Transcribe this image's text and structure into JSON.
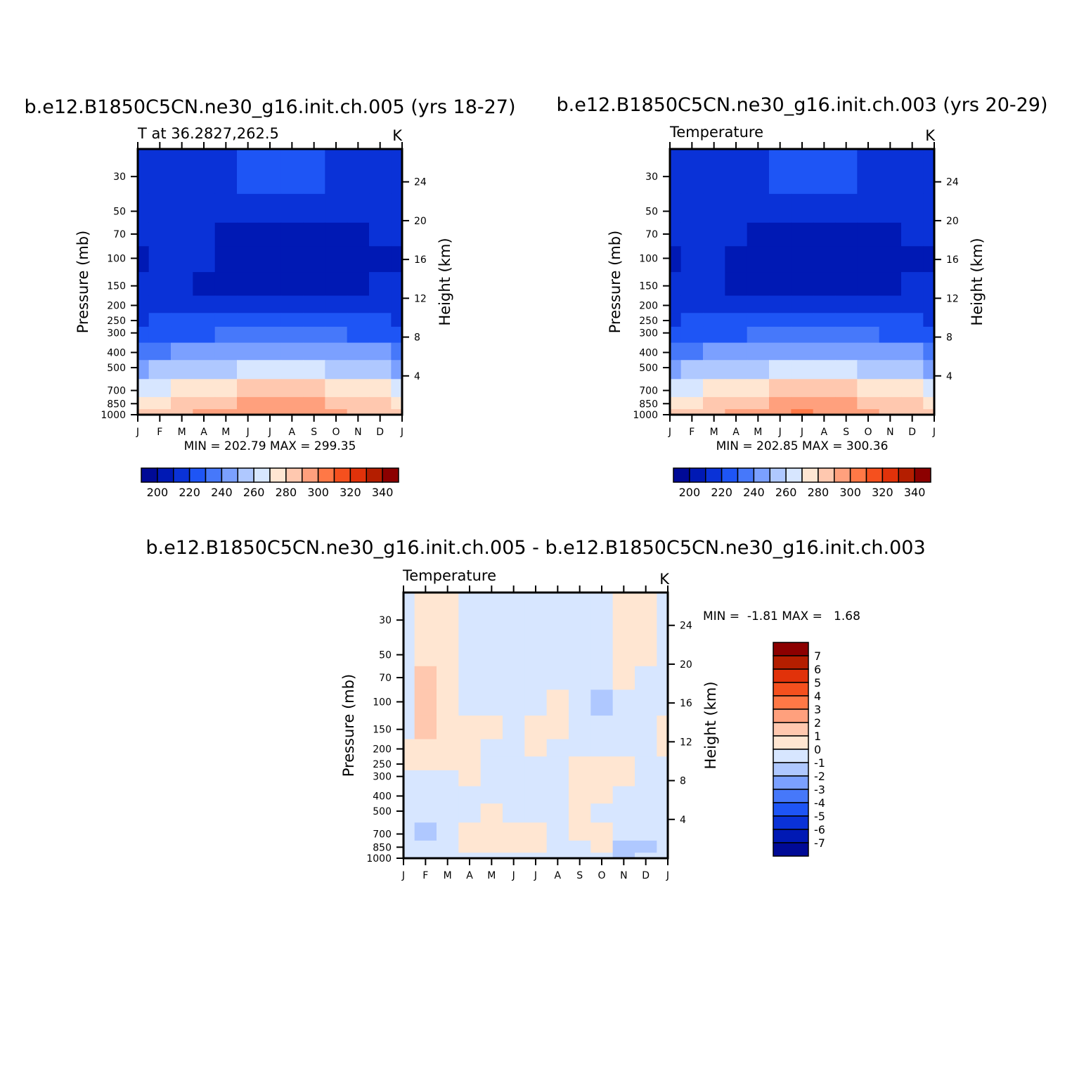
{
  "panels": [
    {
      "id": "p1",
      "title": "b.e12.B1850C5CN.ne30_g16.init.ch.005 (yrs 18-27)",
      "subtitle_left": "T at 36.2827,262.5",
      "subtitle_right": "K",
      "left_axis_label": "Pressure (mb)",
      "right_axis_label": "Height (km)",
      "pressure_ticks": [
        "30",
        "50",
        "70",
        "100",
        "150",
        "200",
        "250",
        "300",
        "400",
        "500",
        "700",
        "850",
        "1000"
      ],
      "height_ticks": [
        "24",
        "20",
        "16",
        "12",
        "8",
        "4"
      ],
      "month_ticks": [
        "J",
        "F",
        "M",
        "A",
        "M",
        "J",
        "J",
        "A",
        "S",
        "O",
        "N",
        "D",
        "J"
      ],
      "stats": "MIN = 202.79 MAX = 299.35",
      "min": 202.79,
      "max": 299.35,
      "colorbar_labels": [
        "200",
        "220",
        "240",
        "260",
        "280",
        "300",
        "320",
        "340"
      ]
    },
    {
      "id": "p2",
      "title": "b.e12.B1850C5CN.ne30_g16.init.ch.003 (yrs 20-29)",
      "subtitle_left": "Temperature",
      "subtitle_right": "K",
      "left_axis_label": "Pressure (mb)",
      "right_axis_label": "Height (km)",
      "pressure_ticks": [
        "30",
        "50",
        "70",
        "100",
        "150",
        "200",
        "250",
        "300",
        "400",
        "500",
        "700",
        "850",
        "1000"
      ],
      "height_ticks": [
        "24",
        "20",
        "16",
        "12",
        "8",
        "4"
      ],
      "month_ticks": [
        "J",
        "F",
        "M",
        "A",
        "M",
        "J",
        "J",
        "A",
        "S",
        "O",
        "N",
        "D",
        "J"
      ],
      "stats": "MIN = 202.85 MAX = 300.36",
      "min": 202.85,
      "max": 300.36,
      "colorbar_labels": [
        "200",
        "220",
        "240",
        "260",
        "280",
        "300",
        "320",
        "340"
      ]
    },
    {
      "id": "p3",
      "title": "b.e12.B1850C5CN.ne30_g16.init.ch.005 - b.e12.B1850C5CN.ne30_g16.init.ch.003",
      "subtitle_left": "Temperature",
      "subtitle_right": "K",
      "left_axis_label": "Pressure (mb)",
      "right_axis_label": "Height (km)",
      "pressure_ticks": [
        "30",
        "50",
        "70",
        "100",
        "150",
        "200",
        "250",
        "300",
        "400",
        "500",
        "700",
        "850",
        "1000"
      ],
      "height_ticks": [
        "24",
        "20",
        "16",
        "12",
        "8",
        "4"
      ],
      "month_ticks": [
        "J",
        "F",
        "M",
        "A",
        "M",
        "J",
        "J",
        "A",
        "S",
        "O",
        "N",
        "D",
        "J"
      ],
      "stats": "MIN =  -1.81 MAX =   1.68",
      "min": -1.81,
      "max": 1.68,
      "colorbar_labels": [
        "7",
        "6",
        "5",
        "4",
        "3",
        "2",
        "1",
        "0",
        "-1",
        "-2",
        "-3",
        "-4",
        "-5",
        "-6",
        "-7"
      ]
    }
  ],
  "chart_data": [
    {
      "type": "heatmap",
      "title": "b.e12.B1850C5CN.ne30_g16.init.ch.005 (yrs 18-27)",
      "subtitle": "T at 36.2827,262.5",
      "units": "K",
      "xlabel": "",
      "ylabel": "Pressure (mb)",
      "y2label": "Height (km)",
      "x": [
        "J",
        "F",
        "M",
        "A",
        "M",
        "J",
        "J",
        "A",
        "S",
        "O",
        "N",
        "D",
        "J"
      ],
      "y_pressure": [
        30,
        50,
        70,
        100,
        150,
        200,
        250,
        300,
        400,
        500,
        700,
        850,
        1000
      ],
      "y_height_ticks": [
        24,
        20,
        16,
        12,
        8,
        4
      ],
      "ylim": [
        1000,
        20
      ],
      "levels": [
        190,
        200,
        210,
        220,
        230,
        240,
        250,
        260,
        270,
        280,
        290,
        300,
        310,
        320,
        330,
        340,
        350
      ],
      "colors": [
        "#000a96",
        "#0019b4",
        "#0a32d7",
        "#1e55f5",
        "#4678fa",
        "#7ba0ff",
        "#afc8ff",
        "#d7e6ff",
        "#ffe6d2",
        "#ffc8af",
        "#ffa07d",
        "#ff7846",
        "#f5501e",
        "#e1320a",
        "#b41e00",
        "#8c0000"
      ],
      "min": 202.79,
      "max": 299.35,
      "values": [
        [
          219,
          219,
          219,
          219,
          219,
          223,
          227,
          227,
          223,
          219,
          219,
          219,
          219
        ],
        [
          212,
          212,
          214,
          214,
          212,
          212,
          211,
          210,
          210,
          211,
          212,
          212,
          212
        ],
        [
          210,
          214,
          214,
          211,
          208,
          207,
          206,
          206,
          206,
          207,
          208,
          210,
          210
        ],
        [
          209,
          214,
          213,
          210,
          206,
          205,
          205,
          205,
          205,
          206,
          208,
          209,
          209
        ],
        [
          212,
          214,
          213,
          206,
          205,
          206,
          206,
          206,
          206,
          206,
          208,
          211,
          212
        ],
        [
          215,
          216,
          215,
          213,
          212,
          214,
          215,
          215,
          215,
          214,
          213,
          215,
          215
        ],
        [
          219,
          220,
          221,
          222,
          223,
          225,
          226,
          226,
          225,
          224,
          222,
          220,
          219
        ],
        [
          225,
          226,
          228,
          229,
          231,
          233,
          234,
          234,
          233,
          231,
          229,
          227,
          225
        ],
        [
          238,
          239,
          241,
          243,
          245,
          247,
          248,
          248,
          247,
          245,
          243,
          240,
          238
        ],
        [
          249,
          250,
          252,
          255,
          258,
          260,
          262,
          262,
          260,
          258,
          255,
          252,
          249
        ],
        [
          266,
          268,
          271,
          274,
          278,
          281,
          283,
          283,
          281,
          278,
          274,
          270,
          266
        ],
        [
          276,
          278,
          281,
          285,
          289,
          292,
          294,
          294,
          292,
          288,
          284,
          280,
          276
        ],
        [
          284,
          286,
          289,
          293,
          296,
          298,
          299,
          298,
          296,
          293,
          289,
          286,
          284
        ]
      ]
    },
    {
      "type": "heatmap",
      "title": "b.e12.B1850C5CN.ne30_g16.init.ch.003 (yrs 20-29)",
      "subtitle": "Temperature",
      "units": "K",
      "xlabel": "",
      "ylabel": "Pressure (mb)",
      "y2label": "Height (km)",
      "x": [
        "J",
        "F",
        "M",
        "A",
        "M",
        "J",
        "J",
        "A",
        "S",
        "O",
        "N",
        "D",
        "J"
      ],
      "y_pressure": [
        30,
        50,
        70,
        100,
        150,
        200,
        250,
        300,
        400,
        500,
        700,
        850,
        1000
      ],
      "y_height_ticks": [
        24,
        20,
        16,
        12,
        8,
        4
      ],
      "ylim": [
        1000,
        20
      ],
      "levels": [
        190,
        200,
        210,
        220,
        230,
        240,
        250,
        260,
        270,
        280,
        290,
        300,
        310,
        320,
        330,
        340,
        350
      ],
      "colors": [
        "#000a96",
        "#0019b4",
        "#0a32d7",
        "#1e55f5",
        "#4678fa",
        "#7ba0ff",
        "#afc8ff",
        "#d7e6ff",
        "#ffe6d2",
        "#ffc8af",
        "#ffa07d",
        "#ff7846",
        "#f5501e",
        "#e1320a",
        "#b41e00",
        "#8c0000"
      ],
      "min": 202.85,
      "max": 300.36,
      "values": [
        [
          219,
          219,
          219,
          219,
          219,
          223,
          227,
          227,
          223,
          219,
          219,
          219,
          219
        ],
        [
          212,
          212,
          214,
          214,
          212,
          212,
          211,
          210,
          210,
          211,
          212,
          212,
          212
        ],
        [
          210,
          213,
          213,
          210,
          208,
          207,
          206,
          206,
          206,
          207,
          208,
          210,
          210
        ],
        [
          209,
          213,
          212,
          209,
          206,
          205,
          205,
          205,
          205,
          206,
          208,
          209,
          209
        ],
        [
          212,
          213,
          212,
          206,
          205,
          206,
          206,
          206,
          206,
          206,
          208,
          211,
          212
        ],
        [
          215,
          216,
          215,
          213,
          212,
          214,
          215,
          215,
          215,
          214,
          213,
          215,
          215
        ],
        [
          219,
          220,
          221,
          222,
          223,
          225,
          226,
          226,
          225,
          224,
          222,
          220,
          219
        ],
        [
          225,
          226,
          228,
          229,
          231,
          233,
          234,
          234,
          233,
          231,
          229,
          227,
          225
        ],
        [
          238,
          239,
          241,
          243,
          245,
          247,
          248,
          248,
          247,
          245,
          243,
          240,
          238
        ],
        [
          249,
          250,
          252,
          255,
          258,
          260,
          262,
          262,
          260,
          258,
          255,
          252,
          249
        ],
        [
          266,
          268,
          271,
          274,
          278,
          281,
          283,
          283,
          281,
          278,
          274,
          270,
          266
        ],
        [
          276,
          278,
          281,
          285,
          289,
          292,
          294,
          294,
          292,
          288,
          284,
          280,
          276
        ],
        [
          284,
          286,
          289,
          293,
          296,
          299,
          300,
          299,
          296,
          293,
          289,
          286,
          284
        ]
      ]
    },
    {
      "type": "heatmap",
      "title": "b.e12.B1850C5CN.ne30_g16.init.ch.005 - b.e12.B1850C5CN.ne30_g16.init.ch.003",
      "subtitle": "Temperature",
      "units": "K",
      "xlabel": "",
      "ylabel": "Pressure (mb)",
      "y2label": "Height (km)",
      "x": [
        "J",
        "F",
        "M",
        "A",
        "M",
        "J",
        "J",
        "A",
        "S",
        "O",
        "N",
        "D",
        "J"
      ],
      "y_pressure": [
        30,
        50,
        70,
        100,
        150,
        200,
        250,
        300,
        400,
        500,
        700,
        850,
        1000
      ],
      "y_height_ticks": [
        24,
        20,
        16,
        12,
        8,
        4
      ],
      "ylim": [
        1000,
        20
      ],
      "levels": [
        -8,
        -7,
        -6,
        -5,
        -4,
        -3,
        -2,
        -1,
        0,
        1,
        2,
        3,
        4,
        5,
        6,
        7,
        8
      ],
      "colors": [
        "#000a96",
        "#0019b4",
        "#0a32d7",
        "#1e55f5",
        "#4678fa",
        "#7ba0ff",
        "#afc8ff",
        "#d7e6ff",
        "#ffe6d2",
        "#ffc8af",
        "#ffa07d",
        "#ff7846",
        "#f5501e",
        "#e1320a",
        "#b41e00",
        "#8c0000"
      ],
      "min": -1.81,
      "max": 1.68,
      "values": [
        [
          -0.5,
          0.4,
          0.4,
          -0.5,
          -0.5,
          -0.5,
          -0.5,
          -0.5,
          -0.5,
          -0.5,
          0.4,
          0.4,
          -0.5
        ],
        [
          -0.5,
          0.4,
          0.4,
          -0.5,
          -0.5,
          -0.5,
          -0.5,
          -0.5,
          -0.5,
          -0.5,
          0.4,
          0.4,
          -0.5
        ],
        [
          -0.5,
          1.2,
          0.4,
          -0.5,
          -0.5,
          -0.5,
          -0.5,
          -0.5,
          -0.5,
          -0.5,
          0.4,
          -0.5,
          -0.5
        ],
        [
          -0.5,
          1.3,
          0.4,
          -0.5,
          -0.5,
          -0.5,
          -0.5,
          0.4,
          -0.5,
          -1.1,
          -0.5,
          -0.5,
          -0.5
        ],
        [
          -0.5,
          1.4,
          0.5,
          0.4,
          0.3,
          -0.5,
          0.4,
          0.4,
          -0.5,
          -0.5,
          -0.5,
          -0.5,
          0.4
        ],
        [
          0.3,
          0.5,
          0.3,
          0.4,
          -0.5,
          -0.5,
          0.4,
          -0.5,
          -0.5,
          -0.5,
          -0.5,
          -0.5,
          0.3
        ],
        [
          0.3,
          0.3,
          0.3,
          0.3,
          -0.5,
          -0.5,
          -0.5,
          -0.5,
          0.4,
          0.4,
          0.4,
          -0.5,
          -0.5
        ],
        [
          -0.5,
          -0.5,
          -0.5,
          0.3,
          -0.5,
          -0.5,
          -0.5,
          -0.5,
          0.4,
          0.4,
          0.4,
          -0.5,
          -0.5
        ],
        [
          -0.5,
          -0.5,
          -0.5,
          -0.5,
          -0.5,
          -0.5,
          -0.5,
          -0.5,
          0.4,
          0.4,
          -0.5,
          -0.5,
          -0.5
        ],
        [
          -0.5,
          -0.5,
          -0.5,
          -0.5,
          0.4,
          -0.5,
          -0.5,
          -0.5,
          0.4,
          -0.5,
          -0.5,
          -0.5,
          -0.5
        ],
        [
          -0.5,
          -1.2,
          -0.5,
          0.4,
          0.4,
          0.4,
          0.4,
          -0.5,
          0.4,
          0.4,
          -0.5,
          -0.5,
          -0.5
        ],
        [
          -0.5,
          -0.5,
          -0.5,
          0.4,
          0.4,
          0.4,
          0.4,
          -0.5,
          -0.5,
          0.4,
          -1.2,
          -1.2,
          -0.5
        ],
        [
          -0.5,
          -0.5,
          -0.5,
          -0.5,
          -0.5,
          -0.5,
          -0.5,
          -0.5,
          -0.5,
          -0.5,
          -1.2,
          -0.5,
          -0.5
        ]
      ]
    }
  ]
}
